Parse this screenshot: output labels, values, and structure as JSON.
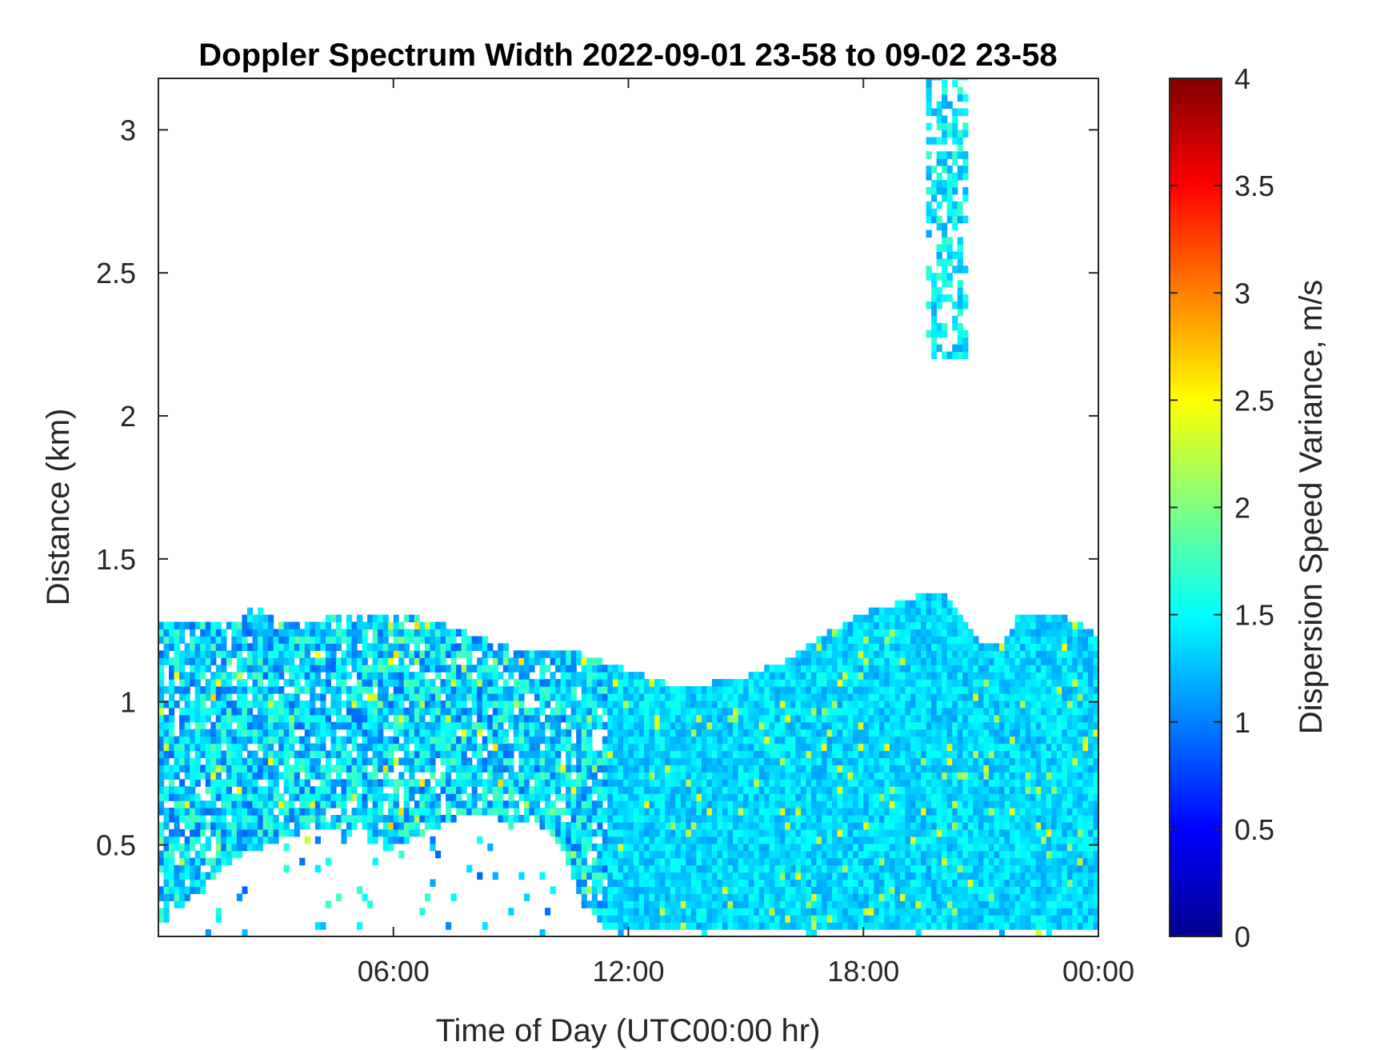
{
  "chart_data": {
    "type": "heatmap",
    "title": "Doppler Spectrum Width 2022-09-01 23-58 to 09-02 23-58",
    "xlabel": "Time of Day (UTC00:00 hr)",
    "ylabel": "Distance (km)",
    "xlim_hours": [
      0,
      24
    ],
    "ylim_km": [
      0.18,
      3.18
    ],
    "x_ticks": [
      {
        "hour": 6,
        "label": "06:00"
      },
      {
        "hour": 12,
        "label": "12:00"
      },
      {
        "hour": 18,
        "label": "18:00"
      },
      {
        "hour": 24,
        "label": "00:00"
      }
    ],
    "y_ticks": [
      {
        "value": 0.5,
        "label": "0.5"
      },
      {
        "value": 1,
        "label": "1"
      },
      {
        "value": 1.5,
        "label": "1.5"
      },
      {
        "value": 2,
        "label": "2"
      },
      {
        "value": 2.5,
        "label": "2.5"
      },
      {
        "value": 3,
        "label": "3"
      }
    ],
    "colorbar": {
      "label": "Dispersion Speed Variance, m/s",
      "colormap": "jet",
      "range": [
        0,
        4
      ],
      "ticks": [
        {
          "value": 0,
          "label": "0"
        },
        {
          "value": 0.5,
          "label": "0.5"
        },
        {
          "value": 1,
          "label": "1"
        },
        {
          "value": 1.5,
          "label": "1.5"
        },
        {
          "value": 2,
          "label": "2"
        },
        {
          "value": 2.5,
          "label": "2.5"
        },
        {
          "value": 3,
          "label": "3"
        },
        {
          "value": 3.5,
          "label": "3.5"
        },
        {
          "value": 4,
          "label": "4"
        }
      ]
    },
    "echo_top_km": [
      [
        0,
        1.27
      ],
      [
        1,
        1.27
      ],
      [
        2,
        1.27
      ],
      [
        2.5,
        1.33
      ],
      [
        3,
        1.27
      ],
      [
        4,
        1.27
      ],
      [
        5,
        1.3
      ],
      [
        6,
        1.3
      ],
      [
        7,
        1.27
      ],
      [
        8,
        1.22
      ],
      [
        9,
        1.18
      ],
      [
        10,
        1.18
      ],
      [
        11,
        1.15
      ],
      [
        12,
        1.1
      ],
      [
        13,
        1.05
      ],
      [
        14,
        1.05
      ],
      [
        15,
        1.08
      ],
      [
        16,
        1.13
      ],
      [
        17,
        1.22
      ],
      [
        18,
        1.3
      ],
      [
        19,
        1.34
      ],
      [
        20,
        1.38
      ],
      [
        20.5,
        1.28
      ],
      [
        21,
        1.2
      ],
      [
        21.5,
        1.18
      ],
      [
        22,
        1.3
      ],
      [
        23,
        1.3
      ],
      [
        24,
        1.22
      ]
    ],
    "echo_bottom_km": [
      [
        0,
        0.2
      ],
      [
        2,
        0.45
      ],
      [
        3,
        0.5
      ],
      [
        4,
        0.55
      ],
      [
        5,
        0.52
      ],
      [
        6,
        0.47
      ],
      [
        7,
        0.55
      ],
      [
        8,
        0.6
      ],
      [
        9,
        0.57
      ],
      [
        10,
        0.55
      ],
      [
        10.8,
        0.3
      ],
      [
        11.3,
        0.2
      ],
      [
        24,
        0.2
      ]
    ],
    "typical_value": 1.35,
    "upper_plume": {
      "hours": [
        19.6,
        20.6
      ],
      "km": [
        2.2,
        3.18
      ],
      "value": 1.45
    }
  }
}
